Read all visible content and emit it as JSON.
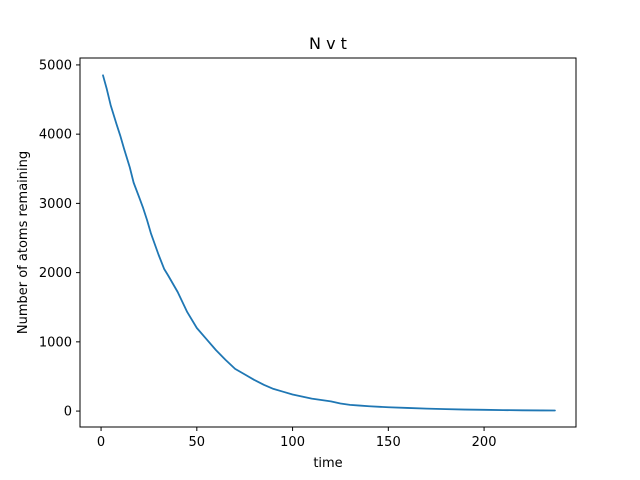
{
  "chart_data": {
    "type": "line",
    "title": "N v t",
    "xlabel": "time",
    "ylabel": "Number of atoms remaining",
    "xlim": [
      -11,
      248
    ],
    "ylim": [
      -230,
      5100
    ],
    "xticks": [
      0,
      50,
      100,
      150,
      200
    ],
    "yticks": [
      0,
      1000,
      2000,
      3000,
      4000,
      5000
    ],
    "grid": false,
    "line_color": "#1f77b4",
    "series": [
      {
        "x": [
          1,
          3,
          5,
          8,
          10,
          12,
          15,
          17,
          20,
          22,
          24,
          26,
          30,
          33,
          35,
          40,
          45,
          50,
          55,
          60,
          65,
          70,
          75,
          80,
          85,
          90,
          95,
          100,
          110,
          120,
          125,
          130,
          135,
          140,
          150,
          160,
          170,
          180,
          190,
          200,
          210,
          220,
          230,
          237
        ],
        "y": [
          4850,
          4650,
          4420,
          4150,
          3980,
          3790,
          3520,
          3300,
          3080,
          2930,
          2760,
          2570,
          2260,
          2050,
          1960,
          1720,
          1430,
          1200,
          1040,
          880,
          740,
          610,
          530,
          450,
          380,
          320,
          280,
          240,
          180,
          140,
          110,
          90,
          80,
          70,
          55,
          45,
          35,
          28,
          22,
          18,
          14,
          11,
          9,
          8
        ]
      }
    ]
  }
}
